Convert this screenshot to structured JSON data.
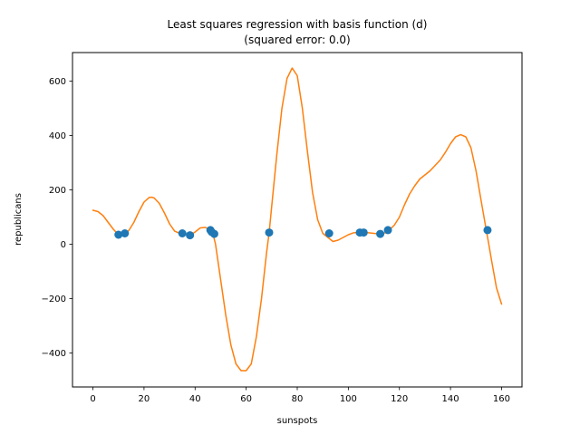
{
  "chart_data": {
    "type": "scatter",
    "title": "Least squares regression with basis function (d)",
    "subtitle": "(squared error: 0.0)",
    "xlabel": "sunspots",
    "ylabel": "republicans",
    "xlim": [
      -8,
      168
    ],
    "ylim": [
      -525,
      705
    ],
    "xticks": [
      0,
      20,
      40,
      60,
      80,
      100,
      120,
      140,
      160
    ],
    "yticks": [
      -400,
      -200,
      0,
      200,
      400,
      600
    ],
    "grid": false,
    "colors": {
      "points": "#1f77b4",
      "fit": "#ff7f0e"
    },
    "series": [
      {
        "kind": "points",
        "x": [
          10,
          12.5,
          35,
          38,
          46,
          46.5,
          47.5,
          69,
          92.5,
          104.5,
          106,
          112.5,
          115.5,
          154.5
        ],
        "y": [
          35,
          40,
          40,
          33,
          52,
          45,
          38,
          43,
          40,
          43,
          43,
          38,
          52,
          52
        ]
      },
      {
        "kind": "line",
        "x": [
          0,
          2,
          4,
          6,
          8,
          10,
          12,
          14,
          16,
          18,
          20,
          22,
          23,
          24,
          26,
          28,
          30,
          32,
          34,
          35,
          36,
          38,
          40,
          42,
          44,
          46,
          47,
          48,
          50,
          52,
          54,
          56,
          58,
          60,
          62,
          64,
          66,
          68,
          69,
          70,
          72,
          74,
          76,
          78,
          80,
          82,
          84,
          86,
          88,
          90,
          92,
          94,
          96,
          98,
          100,
          102,
          104,
          106,
          108,
          110,
          112,
          114,
          116,
          118,
          120,
          122,
          124,
          126,
          128,
          130,
          132,
          134,
          136,
          138,
          140,
          142,
          144,
          146,
          148,
          150,
          152,
          154,
          155,
          156,
          158,
          160
        ],
        "y": [
          125,
          120,
          105,
          80,
          55,
          35,
          35,
          50,
          80,
          120,
          155,
          172,
          173,
          170,
          150,
          115,
          75,
          48,
          40,
          40,
          38,
          33,
          45,
          60,
          62,
          52,
          38,
          0,
          -130,
          -260,
          -370,
          -440,
          -465,
          -465,
          -440,
          -340,
          -200,
          -30,
          43,
          140,
          330,
          500,
          610,
          648,
          620,
          500,
          340,
          190,
          90,
          40,
          25,
          10,
          15,
          25,
          35,
          42,
          43,
          43,
          42,
          40,
          38,
          40,
          52,
          70,
          100,
          145,
          185,
          215,
          240,
          255,
          270,
          290,
          310,
          338,
          370,
          395,
          403,
          395,
          355,
          270,
          160,
          52,
          0,
          -55,
          -160,
          -220
        ]
      }
    ]
  }
}
